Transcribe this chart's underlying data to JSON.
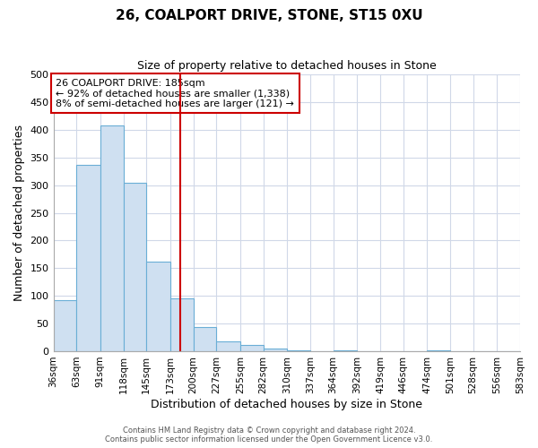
{
  "title": "26, COALPORT DRIVE, STONE, ST15 0XU",
  "subtitle": "Size of property relative to detached houses in Stone",
  "xlabel": "Distribution of detached houses by size in Stone",
  "ylabel": "Number of detached properties",
  "footer_line1": "Contains HM Land Registry data © Crown copyright and database right 2024.",
  "footer_line2": "Contains public sector information licensed under the Open Government Licence v3.0.",
  "bin_edges": [
    36,
    63,
    91,
    118,
    145,
    173,
    200,
    227,
    255,
    282,
    310,
    337,
    364,
    392,
    419,
    446,
    474,
    501,
    528,
    556,
    583
  ],
  "bin_labels": [
    "36sqm",
    "63sqm",
    "91sqm",
    "118sqm",
    "145sqm",
    "173sqm",
    "200sqm",
    "227sqm",
    "255sqm",
    "282sqm",
    "310sqm",
    "337sqm",
    "364sqm",
    "392sqm",
    "419sqm",
    "446sqm",
    "474sqm",
    "501sqm",
    "528sqm",
    "556sqm",
    "583sqm"
  ],
  "counts": [
    93,
    336,
    408,
    304,
    161,
    96,
    44,
    18,
    11,
    5,
    2,
    0,
    2,
    0,
    0,
    0,
    2,
    0,
    0,
    0,
    2
  ],
  "bar_color": "#cfe0f1",
  "bar_edgecolor": "#6aaed6",
  "property_size": 185,
  "vline_color": "#cc0000",
  "annotation_text_line1": "26 COALPORT DRIVE: 185sqm",
  "annotation_text_line2": "← 92% of detached houses are smaller (1,338)",
  "annotation_text_line3": "8% of semi-detached houses are larger (121) →",
  "annotation_box_edgecolor": "#cc0000",
  "ylim": [
    0,
    500
  ],
  "yticks": [
    0,
    50,
    100,
    150,
    200,
    250,
    300,
    350,
    400,
    450,
    500
  ],
  "background_color": "#ffffff",
  "grid_color": "#d0d8e8"
}
